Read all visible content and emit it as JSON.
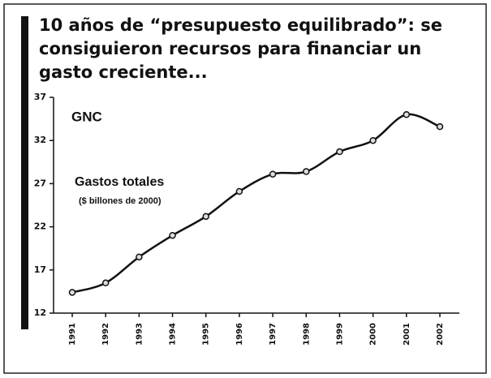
{
  "chart_data": {
    "type": "line",
    "title": [
      "10 años de “presupuesto equilibrado”: se",
      "consiguieron recursos para financiar un",
      "gasto creciente..."
    ],
    "annotations": [
      "GNC",
      "Gastos totales",
      "($ billones de 2000)"
    ],
    "categories": [
      "1991",
      "1992",
      "1993",
      "1994",
      "1995",
      "1996",
      "1997",
      "1998",
      "1999",
      "2000",
      "2001",
      "2002"
    ],
    "series": [
      {
        "name": "Gastos totales",
        "color": "#111111",
        "values": [
          14.4,
          15.5,
          18.5,
          21.0,
          23.2,
          26.1,
          28.1,
          28.4,
          30.7,
          32.0,
          35.0,
          33.6
        ]
      }
    ],
    "ylim": [
      12,
      37
    ],
    "yticks": [
      12,
      17,
      22,
      27,
      32,
      37
    ],
    "grid": false
  }
}
